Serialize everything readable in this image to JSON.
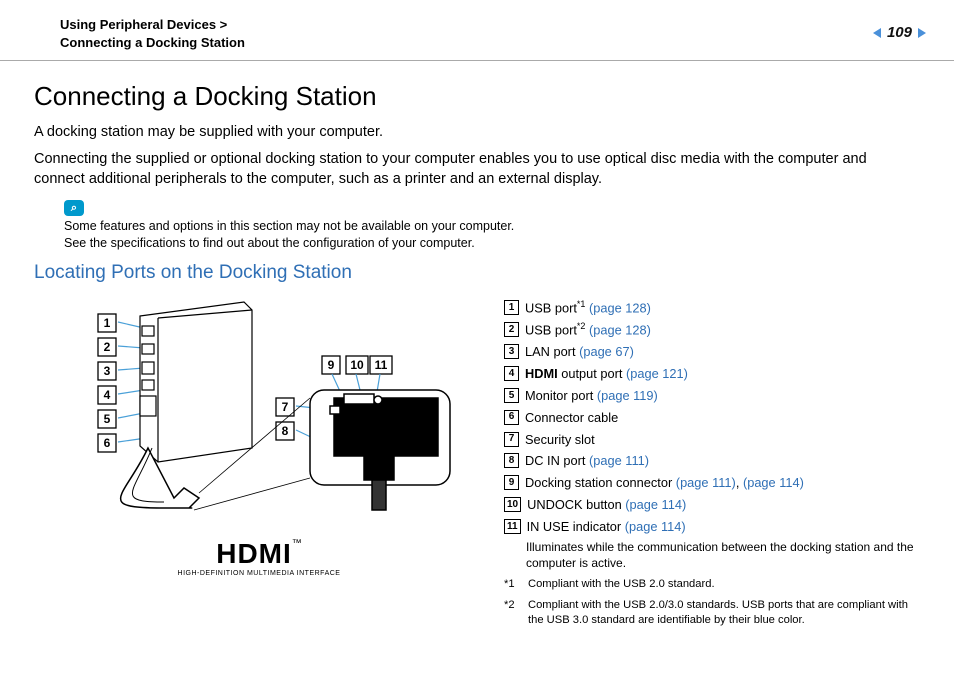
{
  "header": {
    "breadcrumb_l1": "Using Peripheral Devices >",
    "breadcrumb_l2": "Connecting a Docking Station",
    "page_number": "109"
  },
  "title": "Connecting a Docking Station",
  "intro": {
    "p1": "A docking station may be supplied with your computer.",
    "p2": "Connecting the supplied or optional docking station to your computer enables you to use optical disc media with the computer and connect additional peripherals to the computer, such as a printer and an external display."
  },
  "note": {
    "icon_glyph": "⌕",
    "line1": "Some features and options in this section may not be available on your computer.",
    "line2": "See the specifications to find out about the configuration of your computer."
  },
  "subheading": "Locating Ports on the Docking Station",
  "diagram": {
    "callouts_left": [
      "1",
      "2",
      "3",
      "4",
      "5",
      "6"
    ],
    "callouts_mid": [
      "7",
      "8"
    ],
    "callouts_top": [
      "9",
      "10",
      "11"
    ],
    "callout_box_color": "#000000",
    "leader_color": "#4aa0d8",
    "outline_color": "#000000"
  },
  "hdmi": {
    "wordmark": "HDMI",
    "tm": "™",
    "subtitle": "HIGH-DEFINITION MULTIMEDIA INTERFACE"
  },
  "legend": [
    {
      "n": "1",
      "label": "USB port",
      "sup": "*1",
      "links": [
        " (page 128)"
      ]
    },
    {
      "n": "2",
      "label": "USB port",
      "sup": "*2",
      "links": [
        " (page 128)"
      ]
    },
    {
      "n": "3",
      "label": "LAN port",
      "links": [
        " (page 67)"
      ]
    },
    {
      "n": "4",
      "bold": "HDMI",
      "label": " output port",
      "links": [
        " (page 121)"
      ]
    },
    {
      "n": "5",
      "label": "Monitor port",
      "links": [
        " (page 119)"
      ]
    },
    {
      "n": "6",
      "label": "Connector cable"
    },
    {
      "n": "7",
      "label": "Security slot"
    },
    {
      "n": "8",
      "label": "DC IN port",
      "links": [
        " (page 111)"
      ]
    },
    {
      "n": "9",
      "label": "Docking station connector",
      "links": [
        " (page 111)",
        ", ",
        "(page 114)"
      ]
    },
    {
      "n": "10",
      "label": "UNDOCK button",
      "links": [
        " (page 114)"
      ]
    },
    {
      "n": "11",
      "label": "IN USE indicator",
      "links": [
        " (page 114)"
      ],
      "detail": "Illuminates while the communication between the docking station and the computer is active."
    }
  ],
  "footnotes": [
    {
      "n": "*1",
      "text": "Compliant with the USB 2.0 standard."
    },
    {
      "n": "*2",
      "text": "Compliant with the USB 2.0/3.0 standards. USB ports that are compliant with the USB 3.0 standard are identifiable by their blue color."
    }
  ],
  "colors": {
    "link": "#2f6fb5",
    "note_bg": "#0099cc",
    "arrow": "#4a90d9"
  }
}
